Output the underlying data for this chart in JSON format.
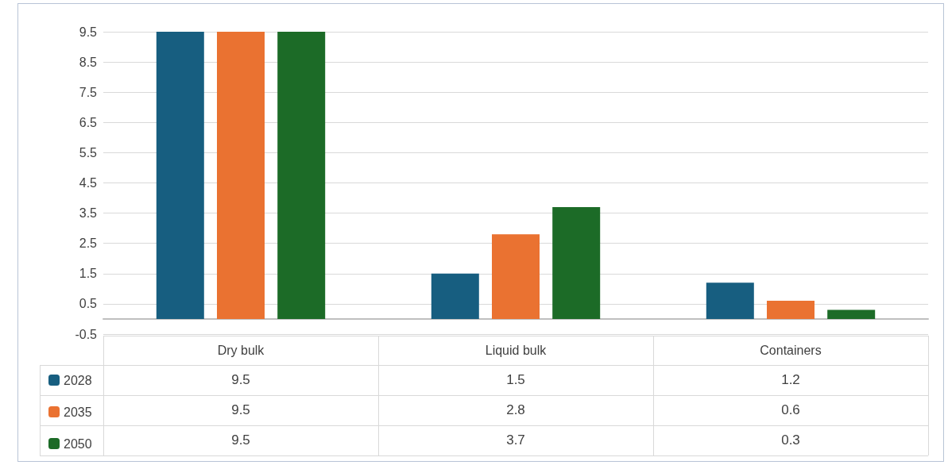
{
  "chart_data": {
    "type": "bar",
    "categories": [
      "Dry bulk",
      "Liquid bulk",
      "Containers"
    ],
    "series": [
      {
        "name": "2028",
        "color": "#175e80",
        "values": [
          9.5,
          1.5,
          1.2
        ]
      },
      {
        "name": "2035",
        "color": "#ea7231",
        "values": [
          9.5,
          2.8,
          0.6
        ]
      },
      {
        "name": "2050",
        "color": "#1c6b27",
        "values": [
          9.5,
          3.7,
          0.3
        ]
      }
    ],
    "ylim": [
      -0.5,
      9.5
    ],
    "yticks": [
      -0.5,
      0.5,
      1.5,
      2.5,
      3.5,
      4.5,
      5.5,
      6.5,
      7.5,
      8.5,
      9.5
    ],
    "grid": "y",
    "legend": "bottom left",
    "data_labels": true
  }
}
